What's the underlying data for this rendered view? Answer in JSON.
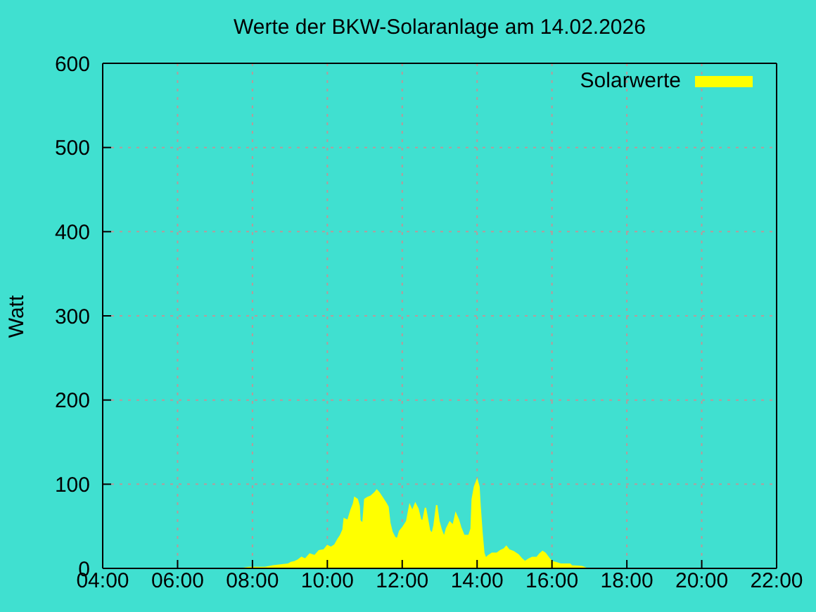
{
  "chart_data": {
    "type": "area",
    "title": "Werte der BKW-Solaranlage am 14.02.2026",
    "ylabel": "Watt",
    "x": [
      7.75,
      7.9,
      8.34,
      8.55,
      8.95,
      9.03,
      9.13,
      9.22,
      9.31,
      9.41,
      9.53,
      9.66,
      9.78,
      9.91,
      10.0,
      10.1,
      10.2,
      10.29,
      10.35,
      10.42,
      10.45,
      10.55,
      10.63,
      10.7,
      10.73,
      10.8,
      10.85,
      10.87,
      10.95,
      11.0,
      11.07,
      11.17,
      11.27,
      11.32,
      11.38,
      11.47,
      11.57,
      11.62,
      11.67,
      11.73,
      11.8,
      11.87,
      11.93,
      12.02,
      12.12,
      12.2,
      12.27,
      12.35,
      12.42,
      12.49,
      12.55,
      12.62,
      12.67,
      12.73,
      12.8,
      12.85,
      12.92,
      12.98,
      13.05,
      13.12,
      13.18,
      13.27,
      13.36,
      13.43,
      13.5,
      13.56,
      13.65,
      13.78,
      13.84,
      13.87,
      13.93,
      14.0,
      14.05,
      14.08,
      14.13,
      14.18,
      14.23,
      14.3,
      14.4,
      14.53,
      14.62,
      14.72,
      14.78,
      14.85,
      14.97,
      15.1,
      15.2,
      15.28,
      15.38,
      15.47,
      15.6,
      15.67,
      15.75,
      15.82,
      15.92,
      16.0,
      16.1,
      16.23,
      16.48,
      16.53,
      16.8,
      16.92
    ],
    "series": [
      {
        "name": "Solarwerte",
        "color": "#ffff00",
        "values": [
          0,
          1,
          1,
          3,
          5,
          7,
          8,
          10,
          13,
          11,
          17,
          15,
          21,
          22,
          27,
          25,
          28,
          35,
          39,
          46,
          59,
          57,
          69,
          77,
          84,
          82,
          74,
          57,
          53,
          82,
          84,
          86,
          90,
          93,
          90,
          84,
          77,
          73,
          54,
          43,
          37,
          35,
          44,
          49,
          56,
          75,
          68,
          77,
          71,
          58,
          56,
          72,
          60,
          45,
          41,
          51,
          75,
          56,
          45,
          37,
          47,
          55,
          51,
          65,
          58,
          49,
          39,
          39,
          47,
          82,
          97,
          105,
          97,
          74,
          43,
          18,
          12,
          15,
          18,
          18,
          21,
          23,
          26,
          22,
          20,
          16,
          11,
          8,
          11,
          13,
          13,
          17,
          20,
          18,
          12,
          8,
          7,
          5,
          5,
          3,
          2,
          0
        ]
      }
    ],
    "xlim": [
      4,
      22
    ],
    "xticks": [
      {
        "value": 4,
        "label": "04:00"
      },
      {
        "value": 6,
        "label": "06:00"
      },
      {
        "value": 8,
        "label": "08:00"
      },
      {
        "value": 10,
        "label": "10:00"
      },
      {
        "value": 12,
        "label": "12:00"
      },
      {
        "value": 14,
        "label": "14:00"
      },
      {
        "value": 16,
        "label": "16:00"
      },
      {
        "value": 18,
        "label": "18:00"
      },
      {
        "value": 20,
        "label": "20:00"
      },
      {
        "value": 22,
        "label": "22:00"
      }
    ],
    "ylim": [
      0,
      600
    ],
    "yticks": [
      0,
      100,
      200,
      300,
      400,
      500,
      600
    ],
    "grid": true,
    "legend": "top right"
  }
}
